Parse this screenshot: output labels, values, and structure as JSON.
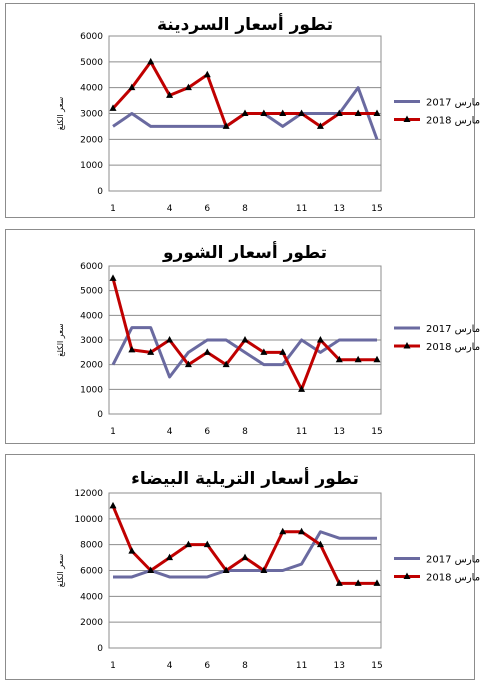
{
  "chart_data": [
    {
      "type": "line",
      "title": "تطور أسعار السردينة",
      "ylabel": "سعر الكلغ",
      "ylim": [
        0,
        6000
      ],
      "yticks": [
        0,
        1000,
        2000,
        3000,
        4000,
        5000,
        6000
      ],
      "x": [
        1,
        2,
        3,
        4,
        5,
        6,
        7,
        8,
        9,
        10,
        11,
        12,
        13,
        14,
        15
      ],
      "xticks": [
        1,
        4,
        6,
        8,
        11,
        13,
        15
      ],
      "legend_position": "right",
      "series": [
        {
          "name": "مارس 2017",
          "color": "#6a6aa0",
          "marker": "none",
          "values": [
            2500,
            3000,
            2500,
            2500,
            2500,
            2500,
            2500,
            3000,
            3000,
            2500,
            3000,
            3000,
            3000,
            4000,
            2000
          ]
        },
        {
          "name": "مارس 2018",
          "color": "#c00000",
          "marker": "triangle",
          "values": [
            3200,
            4000,
            5000,
            3700,
            4000,
            4500,
            2500,
            3000,
            3000,
            3000,
            3000,
            2500,
            3000,
            3000,
            3000
          ]
        }
      ]
    },
    {
      "type": "line",
      "title": "تطور أسعار الشورو",
      "ylabel": "سعر الكلغ",
      "ylim": [
        0,
        6000
      ],
      "yticks": [
        0,
        1000,
        2000,
        3000,
        4000,
        5000,
        6000
      ],
      "x": [
        1,
        2,
        3,
        4,
        5,
        6,
        7,
        8,
        9,
        10,
        11,
        12,
        13,
        14,
        15
      ],
      "xticks": [
        1,
        4,
        6,
        8,
        11,
        13,
        15
      ],
      "legend_position": "right",
      "series": [
        {
          "name": "مارس 2017",
          "color": "#6a6aa0",
          "marker": "none",
          "values": [
            2000,
            3500,
            3500,
            1500,
            2500,
            3000,
            3000,
            2500,
            2000,
            2000,
            3000,
            2500,
            3000,
            3000,
            3000
          ]
        },
        {
          "name": "مارس 2018",
          "color": "#c00000",
          "marker": "triangle",
          "values": [
            5500,
            2600,
            2500,
            3000,
            2000,
            2500,
            2000,
            3000,
            2500,
            2500,
            1000,
            3000,
            2200,
            2200,
            2200
          ]
        }
      ]
    },
    {
      "type": "line",
      "title": "تطور أسعار التريلية البيضاء",
      "ylabel": "سعر الكلغ",
      "ylim": [
        0,
        12000
      ],
      "yticks": [
        0,
        2000,
        4000,
        6000,
        8000,
        10000,
        12000
      ],
      "x": [
        1,
        2,
        3,
        4,
        5,
        6,
        7,
        8,
        9,
        10,
        11,
        12,
        13,
        14,
        15
      ],
      "xticks": [
        1,
        4,
        6,
        8,
        11,
        13,
        15
      ],
      "legend_position": "right",
      "series": [
        {
          "name": "مارس 2017",
          "color": "#6a6aa0",
          "marker": "none",
          "values": [
            5500,
            5500,
            6000,
            5500,
            5500,
            5500,
            6000,
            6000,
            6000,
            6000,
            6500,
            9000,
            8500,
            8500,
            8500
          ]
        },
        {
          "name": "مارس 2018",
          "color": "#c00000",
          "marker": "triangle",
          "values": [
            11000,
            7500,
            6000,
            7000,
            8000,
            8000,
            6000,
            7000,
            6000,
            9000,
            9000,
            8000,
            5000,
            5000,
            5000
          ]
        }
      ]
    }
  ]
}
